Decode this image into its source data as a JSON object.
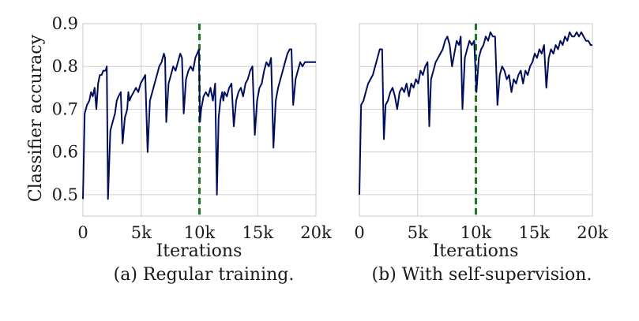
{
  "shared": {
    "ylabel": "Classifier accuracy",
    "y_ticks": [
      "0.5",
      "0.6",
      "0.7",
      "0.8",
      "0.9"
    ],
    "y_tick_values": [
      0.5,
      0.6,
      0.7,
      0.8,
      0.9
    ],
    "series_color": "#000c5c",
    "marker_color": "#1e7a1e"
  },
  "chart_data": [
    {
      "type": "line",
      "xlabel": "Iterations",
      "caption": "(a) Regular training.",
      "xlim": [
        0,
        20000
      ],
      "ylim": [
        0.45,
        0.9
      ],
      "x_ticks": [
        "0",
        "5k",
        "10k",
        "15k",
        "20k"
      ],
      "x_tick_values": [
        0,
        5000,
        10000,
        15000,
        20000
      ],
      "vline_x": 10000,
      "grid": true,
      "x": [
        0,
        150,
        350,
        550,
        700,
        850,
        1000,
        1150,
        1300,
        1450,
        1600,
        1750,
        1950,
        2050,
        2150,
        2350,
        2550,
        2750,
        2900,
        3050,
        3250,
        3400,
        3600,
        3800,
        3900,
        4000,
        4150,
        4350,
        4550,
        4750,
        4950,
        5150,
        5350,
        5550,
        5750,
        5950,
        6150,
        6350,
        6550,
        6750,
        6950,
        7050,
        7150,
        7350,
        7550,
        7750,
        7950,
        8150,
        8350,
        8500,
        8650,
        8850,
        9050,
        9250,
        9450,
        9650,
        9800,
        9950,
        10050,
        10150,
        10350,
        10550,
        10750,
        10950,
        11150,
        11350,
        11500,
        11650,
        11800,
        11950,
        12050,
        12150,
        12350,
        12550,
        12750,
        12950,
        13150,
        13350,
        13550,
        13750,
        13950,
        14150,
        14350,
        14550,
        14750,
        14950,
        15150,
        15350,
        15550,
        15750,
        15950,
        16150,
        16350,
        16550,
        16750,
        16950,
        17150,
        17350,
        17550,
        17750,
        17900,
        18050,
        18250,
        18450,
        18650,
        18850,
        19050,
        19250,
        19450,
        19650,
        19850,
        20000
      ],
      "y": [
        0.49,
        0.69,
        0.71,
        0.72,
        0.74,
        0.73,
        0.75,
        0.7,
        0.76,
        0.78,
        0.78,
        0.79,
        0.79,
        0.8,
        0.49,
        0.65,
        0.67,
        0.69,
        0.72,
        0.73,
        0.74,
        0.62,
        0.68,
        0.7,
        0.74,
        0.72,
        0.73,
        0.74,
        0.75,
        0.74,
        0.76,
        0.77,
        0.78,
        0.6,
        0.72,
        0.74,
        0.76,
        0.78,
        0.8,
        0.81,
        0.83,
        0.82,
        0.67,
        0.76,
        0.78,
        0.8,
        0.79,
        0.81,
        0.83,
        0.82,
        0.69,
        0.77,
        0.79,
        0.8,
        0.79,
        0.82,
        0.83,
        0.84,
        0.67,
        0.7,
        0.73,
        0.74,
        0.73,
        0.75,
        0.72,
        0.76,
        0.5,
        0.68,
        0.72,
        0.74,
        0.72,
        0.74,
        0.73,
        0.75,
        0.76,
        0.66,
        0.72,
        0.74,
        0.75,
        0.73,
        0.76,
        0.77,
        0.79,
        0.8,
        0.64,
        0.72,
        0.75,
        0.76,
        0.79,
        0.81,
        0.8,
        0.82,
        0.61,
        0.72,
        0.75,
        0.77,
        0.79,
        0.81,
        0.83,
        0.84,
        0.84,
        0.71,
        0.77,
        0.79,
        0.81,
        0.8,
        0.81,
        0.81,
        0.81,
        0.81,
        0.81,
        0.81
      ]
    },
    {
      "type": "line",
      "xlabel": "Iterations",
      "caption": "(b) With self-supervision.",
      "xlim": [
        0,
        20000
      ],
      "ylim": [
        0.45,
        0.9
      ],
      "x_ticks": [
        "0",
        "5k",
        "10k",
        "15k",
        "20k"
      ],
      "x_tick_values": [
        0,
        5000,
        10000,
        15000,
        20000
      ],
      "vline_x": 10000,
      "grid": true,
      "x": [
        0,
        150,
        350,
        550,
        750,
        950,
        1150,
        1350,
        1550,
        1750,
        1950,
        2100,
        2250,
        2450,
        2650,
        2850,
        3050,
        3250,
        3450,
        3650,
        3850,
        4050,
        4250,
        4450,
        4650,
        4850,
        5050,
        5250,
        5450,
        5650,
        5850,
        6000,
        6150,
        6350,
        6550,
        6750,
        6950,
        7150,
        7350,
        7550,
        7750,
        7950,
        8150,
        8350,
        8550,
        8700,
        8850,
        9050,
        9250,
        9450,
        9650,
        9850,
        10050,
        10250,
        10450,
        10650,
        10850,
        11050,
        11250,
        11450,
        11650,
        11850,
        12050,
        12250,
        12450,
        12650,
        12850,
        13050,
        13250,
        13450,
        13650,
        13850,
        14050,
        14250,
        14450,
        14650,
        14850,
        15050,
        15250,
        15450,
        15650,
        15850,
        16050,
        16250,
        16450,
        16650,
        16850,
        17050,
        17250,
        17450,
        17650,
        17850,
        18050,
        18250,
        18450,
        18650,
        18850,
        19050,
        19250,
        19450,
        19650,
        19850,
        20000
      ],
      "y": [
        0.5,
        0.71,
        0.72,
        0.74,
        0.76,
        0.77,
        0.78,
        0.8,
        0.82,
        0.84,
        0.84,
        0.63,
        0.71,
        0.72,
        0.74,
        0.75,
        0.73,
        0.7,
        0.74,
        0.75,
        0.74,
        0.76,
        0.73,
        0.76,
        0.75,
        0.77,
        0.76,
        0.79,
        0.78,
        0.8,
        0.81,
        0.66,
        0.77,
        0.79,
        0.81,
        0.82,
        0.83,
        0.84,
        0.86,
        0.87,
        0.85,
        0.8,
        0.83,
        0.86,
        0.85,
        0.87,
        0.7,
        0.82,
        0.84,
        0.86,
        0.85,
        0.86,
        0.74,
        0.82,
        0.84,
        0.85,
        0.87,
        0.86,
        0.88,
        0.87,
        0.87,
        0.71,
        0.78,
        0.8,
        0.79,
        0.77,
        0.78,
        0.74,
        0.77,
        0.76,
        0.78,
        0.79,
        0.76,
        0.79,
        0.78,
        0.8,
        0.81,
        0.83,
        0.82,
        0.84,
        0.83,
        0.85,
        0.75,
        0.82,
        0.84,
        0.83,
        0.85,
        0.84,
        0.86,
        0.85,
        0.87,
        0.86,
        0.88,
        0.87,
        0.87,
        0.88,
        0.87,
        0.88,
        0.87,
        0.86,
        0.86,
        0.85,
        0.85
      ]
    }
  ]
}
